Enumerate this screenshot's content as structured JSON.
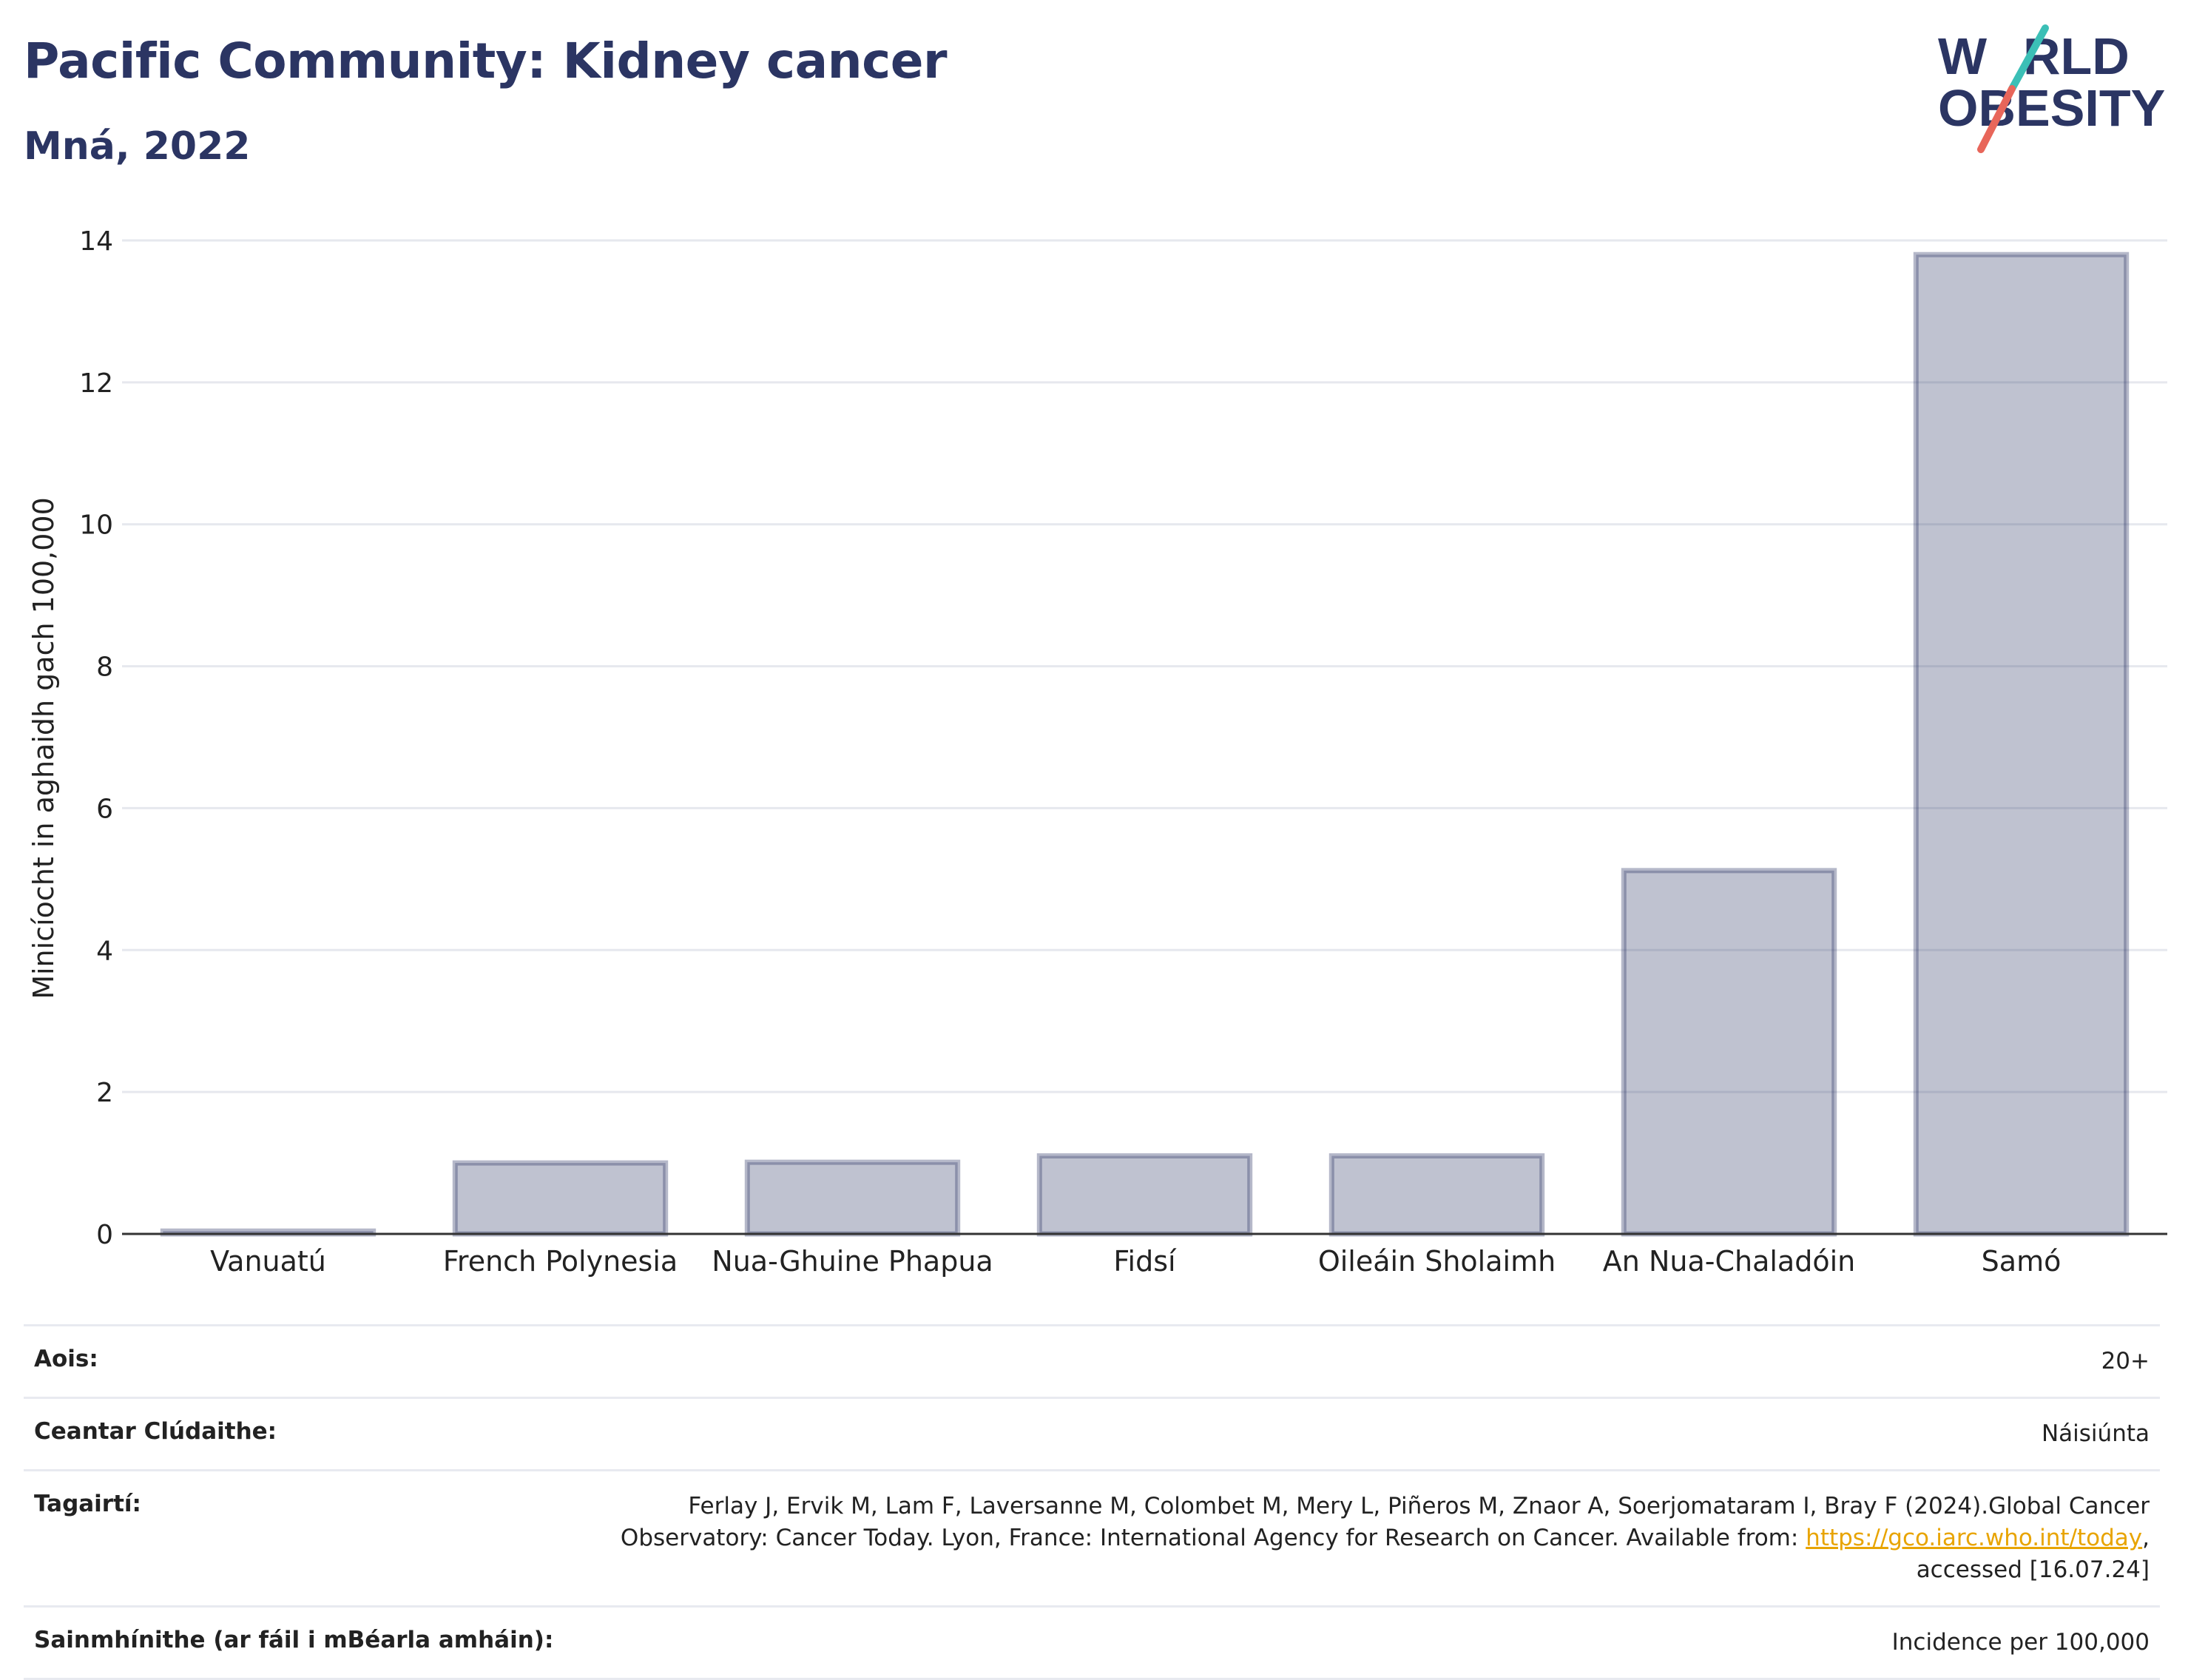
{
  "header": {
    "title": "Pacific Community: Kidney cancer",
    "subtitle": "Mná, 2022"
  },
  "logo": {
    "line1": "W RLD",
    "line2": "OBESITY",
    "text": "WORLD OBESITY"
  },
  "chart_data": {
    "type": "bar",
    "categories": [
      "Vanuatú",
      "French Polynesia",
      "Nua-Ghuine Phapua",
      "Fidsí",
      "Oileáin Sholaimh",
      "An Nua-Chaladóin",
      "Samó"
    ],
    "values": [
      0.04,
      1.0,
      1.01,
      1.1,
      1.1,
      5.12,
      13.8
    ],
    "ylabel": "Minicíocht in aghaidh gach 100,000",
    "ylim": [
      0,
      14
    ],
    "yticks": [
      0,
      2,
      4,
      6,
      8,
      10,
      12,
      14
    ],
    "grid": true,
    "bar_color": "#2b3563"
  },
  "meta": {
    "age_label": "Aois:",
    "age_value": "20+",
    "coverage_label": "Ceantar Clúdaithe:",
    "coverage_value": "Náisiúnta",
    "refs_label": "Tagairtí:",
    "refs_line1": "Ferlay J, Ervik M, Lam F, Laversanne M, Colombet M, Mery L, Piñeros M, Znaor A, Soerjomataram I, Bray F (2024).Global Cancer",
    "refs_line2a": "Observatory: Cancer Today. Lyon, France: International Agency for Research on Cancer. Available from: ",
    "refs_link": "https://gco.iarc.who.int/today",
    "refs_line2b": ",",
    "refs_line3": "accessed [16.07.24]",
    "defs_label": "Sainmhínithe (ar fáil i mBéarla amháin):",
    "defs_value": "Incidence per 100,000"
  }
}
